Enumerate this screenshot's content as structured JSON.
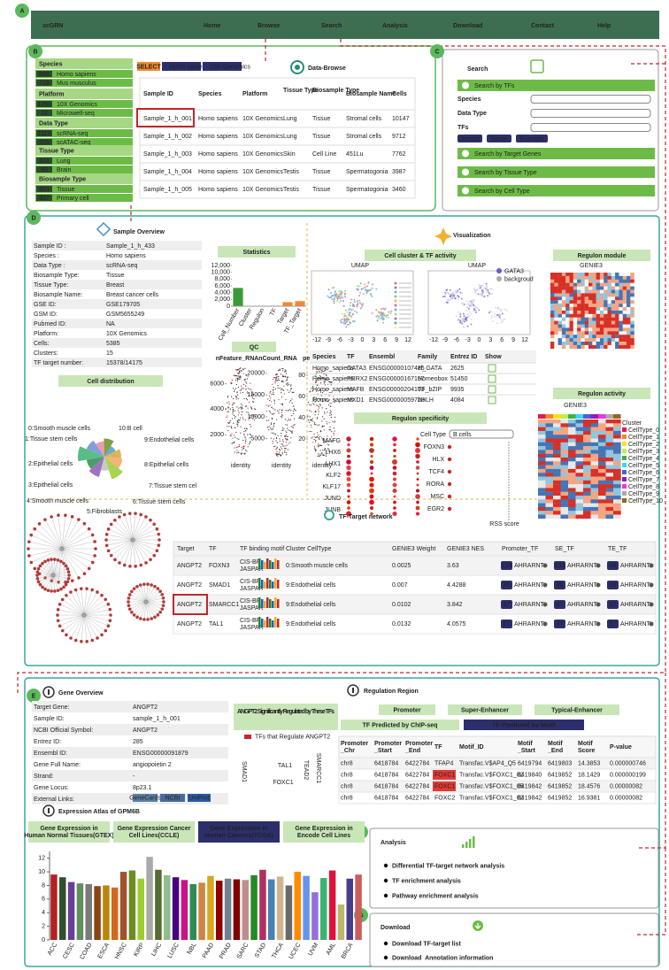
{
  "nav": {
    "brand": "scGRN",
    "links": [
      "Home",
      "Browse",
      "Search",
      "Analysis",
      "Download",
      "Contact",
      "Help"
    ]
  },
  "panels": [
    "A",
    "B",
    "C",
    "D",
    "E",
    "F",
    "G"
  ],
  "browse": {
    "title": "Data-Browse",
    "filters": [
      {
        "title": "Species",
        "items": [
          {
            "count": 598,
            "label": "Homo sapiens"
          },
          {
            "count": 726,
            "label": "Mus musculus"
          }
        ]
      },
      {
        "title": "Platform",
        "items": [
          {
            "count": 1251,
            "label": "10X Genomics"
          },
          {
            "count": 22,
            "label": "Microwell-seq"
          }
        ]
      },
      {
        "title": "Data Type",
        "items": [
          {
            "count": 1119,
            "label": "scRNA-seq"
          },
          {
            "count": 205,
            "label": "scATAC-seq"
          }
        ]
      },
      {
        "title": "Tissue Type",
        "items": [
          {
            "count": 101,
            "label": "Lung"
          },
          {
            "count": 93,
            "label": "Brain"
          }
        ]
      },
      {
        "title": "Biosample Type",
        "items": [
          {
            "count": 903,
            "label": "Tissue"
          },
          {
            "count": 337,
            "label": "Primary cell"
          }
        ]
      }
    ],
    "select": "SELECT",
    "chips": [
      "Homo sapiens",
      "10X Genomics"
    ],
    "table": {
      "headers": [
        "Sample ID",
        "Species",
        "Platform",
        "Tissue Type",
        "Biosample Type",
        "Biosample Name",
        "Cells"
      ],
      "rows": [
        [
          "Sample_1_h_001",
          "Homo sapiens",
          "10X Genomics",
          "Lung",
          "Tissue",
          "Stromal cells",
          "10147"
        ],
        [
          "Sample_1_h_002",
          "Homo sapiens",
          "10X Genomics",
          "Lung",
          "Tissue",
          "Stromal cells",
          "9712"
        ],
        [
          "Sample_1_h_003",
          "Homo sapiens",
          "10X Genomics",
          "Skin",
          "Cell Line",
          "451Lu",
          "7762"
        ],
        [
          "Sample_1_h_004",
          "Homo sapiens",
          "10X Genomics",
          "Testis",
          "Tissue",
          "Spermatogonia",
          "3987"
        ],
        [
          "Sample_1_h_005",
          "Homo sapiens",
          "10X Genomics",
          "Testis",
          "Tissue",
          "Spermatogonia",
          "3460"
        ]
      ]
    }
  },
  "search": {
    "title": "Search",
    "tf_button": "Search by TFs",
    "fields": [
      "Species",
      "Data Type",
      "TFs"
    ],
    "buttons": [
      "Search",
      "Reset",
      "Example"
    ],
    "options": [
      "Search by Target Genes",
      "Search by Tissue Type",
      "Search by Cell Type"
    ]
  },
  "sample_overview": {
    "title": "Sample Overview",
    "fields": [
      [
        "Sample ID :",
        "Sample_1_h_433"
      ],
      [
        "Species :",
        "Homo sapiens"
      ],
      [
        "Data Type :",
        "scRNA-seq"
      ],
      [
        "Biosample Type:",
        "Tissue"
      ],
      [
        "Tissue Type:",
        "Breast"
      ],
      [
        "Biosample Name:",
        "Breast cancer cells"
      ],
      [
        "GSE ID:",
        "GSE179705"
      ],
      [
        "GSM ID:",
        "GSM5655249"
      ],
      [
        "Pubmed ID:",
        "NA"
      ],
      [
        "Platform:",
        "10X Genomics"
      ],
      [
        "Cells:",
        "5385"
      ],
      [
        "Clusters:",
        "15"
      ],
      [
        "TF target number:",
        "15378/14175"
      ]
    ]
  },
  "statistics": {
    "type": "bar",
    "title": "Statistics",
    "categories": [
      "Cell_Number",
      "Cluster",
      "Regulon",
      "TF",
      "Target",
      "TF_Target"
    ],
    "values": [
      5385,
      15,
      150,
      150,
      1200,
      1500
    ],
    "colors": [
      "#3a9a3a",
      "#f08a30",
      "#f08a30",
      "#f08a30",
      "#f08a30",
      "#f08a30"
    ],
    "ylim": [
      0,
      12000
    ],
    "yticks": [
      0,
      {
        "value": 2000,
        "label": "2,000"
      },
      {
        "value": 4000,
        "label": "4,000"
      },
      {
        "value": 6000,
        "label": "6,000"
      },
      {
        "value": 8000,
        "label": "8,000"
      },
      {
        "value": 10000,
        "label": "10,000"
      },
      {
        "value": 12000,
        "label": "12,000"
      }
    ]
  },
  "qc": {
    "title": "QC",
    "xlabel": "identity",
    "plots": [
      {
        "title": "nFeature_RNA",
        "ylim": [
          0,
          7500
        ],
        "yticks": [
          2000,
          4000,
          6000
        ]
      },
      {
        "title": "nCount_RNA",
        "ylim": [
          0,
          22000
        ],
        "yticks": [
          5000,
          10000,
          15000,
          20000
        ]
      },
      {
        "title": "percent.mt",
        "ylim": [
          0,
          90
        ],
        "yticks": [
          20,
          40,
          60,
          80
        ]
      }
    ]
  },
  "cell_distribution": {
    "title": "Cell distribution",
    "labels": [
      "0:Smooth muscle cells",
      "1:Tissue stem cells",
      "2:Epithelial cells",
      "3:Epithelial cells",
      "4:Smooth muscle cells",
      "5:Fibroblasts",
      "6:Tissue stem cells",
      "7:Tissue stem cel",
      "8:Epithelial cells",
      "9:Endothelial cells",
      "10:B cell"
    ],
    "values": [
      30,
      26,
      38,
      28,
      22,
      26,
      18,
      24,
      26,
      34,
      20
    ],
    "colors": [
      "#8e5bb5",
      "#2e8b57",
      "#3cb371",
      "#6a8fd0",
      "#e88aa0",
      "#6b8e23",
      "#4aa0c8",
      "#d9a441",
      "#f4a460",
      "#9acd32",
      "#c0c0c0"
    ]
  },
  "visualization": {
    "title": "Visualization",
    "cluster_title": "Cell cluster & TF activity",
    "umap_titles": [
      "UMAP",
      "UMAP"
    ],
    "umap_xticks": [
      -12,
      -9,
      -6,
      -3,
      0,
      3,
      6,
      9,
      12
    ],
    "tf_legend": [
      "GATA3",
      "backgroud"
    ],
    "module_title": "Regulon module",
    "module_label": "GENIE3",
    "tf_table": {
      "headers": [
        "Species",
        "TF",
        "Ensembl",
        "Family",
        "Entrez ID",
        "Show"
      ],
      "rows": [
        [
          "Homo_sapiens",
          "GATA3",
          "ENSG00000107485",
          "zf_GATA",
          "2625"
        ],
        [
          "Homo_sapiens",
          "PRRX2",
          "ENSG00000167157",
          "Homeobox",
          "51450"
        ],
        [
          "Homo_sapiens",
          "MAFB",
          "ENSG00000204103",
          "TF_bZIP",
          "9935"
        ],
        [
          "Homo_sapiens",
          "MXD1",
          "ENSG00000059728",
          "bHLH",
          "4084"
        ]
      ]
    },
    "specificity_title": "Regulon specificity",
    "cell_type_label": "Cell Type",
    "cell_type_value": "B cells",
    "left_genes": [
      "MAFG",
      "LHX6",
      "LHX1",
      "KLF2",
      "KLF17",
      "JUND",
      "JUNB"
    ],
    "right_genes": [
      "FOXN3",
      "HLX",
      "TCF4",
      "RORA",
      "MSC",
      "EGR2"
    ],
    "rss_label": "RSS score",
    "activity_title": "Regulon activity",
    "activity_label": "GENIE3",
    "activity_legend_title": "Cluster",
    "activity_legend": [
      "CellType_0",
      "CellType_1",
      "CellType_2",
      "CellType_3",
      "CellType_4",
      "CellType_5",
      "CellType_6",
      "CellType_7",
      "CellType_8",
      "CellType_9",
      "CellType_10"
    ],
    "activity_colors": [
      "#e6194b",
      "#f58231",
      "#ffe119",
      "#bfef45",
      "#3cb44b",
      "#42d4f4",
      "#4363d8",
      "#911eb4",
      "#f032e6",
      "#a9a9a9",
      "#9a6324"
    ]
  },
  "network": {
    "title": "TF-Target network",
    "headers": [
      "Target",
      "TF",
      "TF binding motif",
      "Cluster CellType",
      "GENIE3 Weight",
      "GENIE3 NES",
      "Promoter_TF",
      "SE_TF",
      "TE_TF"
    ],
    "rows": [
      {
        "target": "ANGPT2",
        "tf": "FOXN3",
        "motif": [
          "CIS-BP",
          "JASPAR"
        ],
        "cluster": "0:Smooth muscle cells",
        "weight": "0.0025",
        "nes": "3.63",
        "promoter": {
          "count": "133",
          "tf": "AHRARNT"
        },
        "se": {
          "count": "133",
          "tf": "AHRARNT"
        },
        "te": {
          "count": "88",
          "tf": "AHRARNT"
        }
      },
      {
        "target": "ANGPT2",
        "tf": "SMAD1",
        "motif": [
          "CIS-BP",
          "JASPAR"
        ],
        "cluster": "9:Endothelial cells",
        "weight": "0.007",
        "nes": "4.4288",
        "promoter": {
          "count": "86",
          "tf": "AHRARNT"
        },
        "se": {
          "count": "86",
          "tf": "AHRARNT"
        },
        "te": {
          "count": "88",
          "tf": "AHRARNT"
        }
      },
      {
        "target": "ANGPT2",
        "tf": "SMARCC1",
        "motif": [
          "CIS-BP",
          "JASPAR"
        ],
        "cluster": "9:Endothelial cells",
        "weight": "0.0102",
        "nes": "3.842",
        "promoter": {
          "count": "87",
          "tf": "AHRARNT"
        },
        "se": {
          "count": "87",
          "tf": "AHRARNT"
        },
        "te": {
          "count": "87",
          "tf": "AHRARNT"
        }
      },
      {
        "target": "ANGPT2",
        "tf": "TAL1",
        "motif": [
          "CIS-BP",
          "JASPAR"
        ],
        "cluster": "9:Endothelial cells",
        "weight": "0.0132",
        "nes": "4.0575",
        "promoter": {
          "count": "87",
          "tf": "AHRARNT"
        },
        "se": {
          "count": "87",
          "tf": "AHRARNT"
        },
        "te": {
          "count": "87",
          "tf": "AHRARNT"
        }
      }
    ]
  },
  "gene_overview": {
    "title": "Gene Overview",
    "fields": [
      [
        "Target Gene:",
        "ANGPT2"
      ],
      [
        "Sample ID:",
        "sample_1_h_001"
      ],
      [
        "NCBI Official Symbol:",
        "ANGPT2"
      ],
      [
        "Entrez ID:",
        "285"
      ],
      [
        "Ensembl ID:",
        "ENSG00000091879"
      ],
      [
        "Gene Full Name:",
        "angiopoietin 2"
      ],
      [
        "Strand:",
        "-"
      ],
      [
        "Gene Locus:",
        "8p23.1"
      ],
      [
        "External Links:",
        ""
      ]
    ],
    "links": [
      "GeneCards",
      "NCBI",
      "UniProt"
    ],
    "cloud_title": "ANGPT2 Significantly Regulated by These TFs",
    "cloud_legend": "TFs that Regulate ANGPT2",
    "cloud_words": [
      "TAL1",
      "SMARCC1",
      "SMAD1",
      "TEAD2",
      "FOXC1"
    ]
  },
  "regulation": {
    "title": "Regulation Region",
    "tabs": [
      "Promoter",
      "Super-Enhancer",
      "Typical-Enhancer"
    ],
    "subtabs": [
      "TF Predicted by ChIP-seq",
      "TF Predicted by Motif"
    ],
    "headers": [
      "Promoter _Chr",
      "Promoter _Start",
      "Promoter _End",
      "TF",
      "Motif_ID",
      "Motif _Start",
      "Motif _End",
      "Motif Score",
      "P-value"
    ],
    "rows": [
      [
        "chr8",
        "6418784",
        "6422784",
        "TFAP4",
        "Transfac.V$AP4_Q5",
        "6419794",
        "6419803",
        "14.3853",
        "0.000000746"
      ],
      [
        "chr8",
        "6418784",
        "6422784",
        "FOXC1",
        "Transfac.V$FOXC1_02",
        "6419840",
        "6419852",
        "18.1429",
        "0.000000199"
      ],
      [
        "chr8",
        "6418784",
        "6422784",
        "FOXC1",
        "Transfac.V$FOXC1_05",
        "6419842",
        "6419852",
        "18.4576",
        "0.00000082"
      ],
      [
        "chr8",
        "6418784",
        "6422784",
        "FOXC2",
        "Transfac.V$FOXC1_02",
        "6419842",
        "6419852",
        "16.9381",
        "0.00000082"
      ]
    ]
  },
  "expression": {
    "title": "Expression Atlas of GPM6B",
    "tabs": [
      "Gene Expression in Human Normal Tissues(GTEX)",
      "Gene Expression Cancer Cell Lines(CCLE)",
      "Gene Expression in Human Cancers(TCGA)",
      "Gene Expression in Encode Cell Lines"
    ],
    "chart": {
      "type": "bar",
      "categories": [
        "ACC",
        null,
        "CESC",
        null,
        "COAD",
        null,
        "ESCA",
        null,
        "HNSC",
        null,
        "KIRP",
        null,
        "LIHC",
        null,
        "LUSC",
        null,
        "NBL",
        null,
        "PAAD",
        null,
        "PRAD",
        null,
        "SARC",
        null,
        "STAD",
        null,
        "THCA",
        null,
        "UCEC",
        null,
        "UVM",
        null,
        "AML",
        null,
        "BRCA",
        null
      ],
      "values": [
        9.6,
        9.2,
        8.5,
        8.3,
        8.2,
        7.9,
        8.0,
        7.7,
        10.0,
        10.2,
        9.0,
        12.2,
        10.3,
        9.5,
        9.2,
        8.8,
        8.2,
        8.4,
        9.4,
        8.7,
        9.0,
        8.9,
        8.8,
        9.5,
        10.3,
        8.9,
        9.3,
        8.0,
        10.0,
        9.4,
        7.0,
        9.1,
        10.2,
        5.2,
        9.0,
        9.6
      ],
      "colors": [
        "#b22222",
        "#2f4f2f",
        "#6a3d9a",
        "#5f8f5f",
        "#7a7a7a",
        "#8b4513",
        "#b8860b",
        "#d2691e",
        "#a0522d",
        "#6b8e23",
        "#9acd32",
        "#a9a9a9",
        "#556b2f",
        "#8fbc8f",
        "#4b0082",
        "#c71585",
        "#2e8b57",
        "#cd853f",
        "#daa520",
        "#8b0000",
        "#708090",
        "#800000",
        "#bc8f8f",
        "#228b22",
        "#b03060",
        "#4682b4",
        "#d2b48c",
        "#696969",
        "#ff8c00",
        "#6495ed",
        "#9370db",
        "#3cb371",
        "#dc143c",
        "#bdb76b",
        "#483d8b",
        "#cd5c5c"
      ],
      "ylim": [
        0,
        13
      ],
      "yticks": [
        0,
        2,
        4,
        6,
        8,
        10,
        12
      ]
    }
  },
  "analysis": {
    "title": "Analysis",
    "items": [
      "Differential TF-target network analysis",
      "TF enrichment analysis",
      "Pathway enrichment analysis"
    ]
  },
  "download": {
    "title": "Download",
    "items": [
      "Download TF-target list",
      "Download  Annotation information"
    ]
  }
}
